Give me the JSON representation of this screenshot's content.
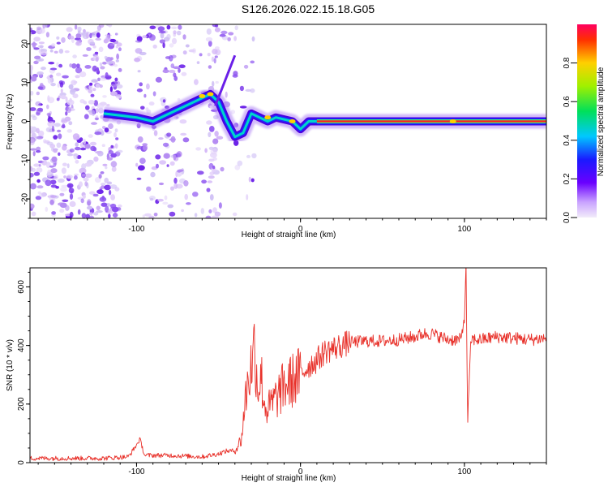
{
  "page_title": "S126.2026.022.15.18.G05",
  "chart_data": [
    {
      "type": "heatmap",
      "title": "S126.2026.022.15.18.G05",
      "xlabel": "Height of straight line (km)",
      "ylabel": "Frequency (Hz)",
      "xlim": [
        -165,
        150
      ],
      "ylim": [
        -25,
        25
      ],
      "xticks": [
        -100,
        0,
        100
      ],
      "yticks": [
        -20,
        -10,
        0,
        10,
        20
      ],
      "colorbar": {
        "label": "Normalized spectral amplitude",
        "range": [
          0,
          1
        ],
        "ticks": [
          "0.0",
          "0.2",
          "0.4",
          "0.6",
          "0.8"
        ],
        "colormap": "rainbow (white/violet low, red high)"
      },
      "ridge": {
        "description": "main frequency ridge vs height",
        "x": [
          -120,
          -110,
          -100,
          -90,
          -80,
          -70,
          -60,
          -55,
          -50,
          -45,
          -40,
          -35,
          -30,
          -25,
          -20,
          -15,
          -10,
          -5,
          0,
          5,
          10,
          20,
          40,
          60,
          80,
          100,
          120,
          140,
          150
        ],
        "y": [
          2,
          1.5,
          1,
          0,
          2,
          4,
          6,
          7,
          5,
          0,
          -4,
          -3,
          2,
          1,
          0,
          1,
          0.5,
          0,
          -2,
          0,
          0,
          0,
          0,
          0,
          0,
          0,
          0,
          0,
          0
        ]
      }
    },
    {
      "type": "line",
      "xlabel": "Height of straight line (km)",
      "ylabel": "SNR (10 * v/v)",
      "xlim": [
        -165,
        150
      ],
      "ylim": [
        0,
        665
      ],
      "xticks": [
        -100,
        0,
        100
      ],
      "yticks": [
        0,
        200,
        400,
        600
      ],
      "color": "#e8312a",
      "series": [
        {
          "name": "SNR",
          "x": [
            -165,
            -140,
            -120,
            -105,
            -100,
            -98,
            -95,
            -80,
            -60,
            -50,
            -45,
            -40,
            -36,
            -34,
            -32,
            -30,
            -28,
            -26,
            -24,
            -22,
            -20,
            -15,
            -10,
            -5,
            0,
            5,
            10,
            15,
            20,
            25,
            30,
            40,
            50,
            60,
            70,
            75,
            80,
            85,
            90,
            95,
            98,
            100,
            101,
            102,
            104,
            110,
            120,
            130,
            140,
            150
          ],
          "y": [
            15,
            15,
            15,
            20,
            60,
            80,
            25,
            25,
            20,
            30,
            40,
            40,
            80,
            200,
            280,
            330,
            400,
            250,
            300,
            200,
            180,
            220,
            260,
            280,
            300,
            330,
            350,
            380,
            390,
            400,
            410,
            415,
            415,
            420,
            430,
            440,
            440,
            430,
            420,
            420,
            420,
            500,
            660,
            140,
            420,
            420,
            430,
            425,
            420,
            425
          ]
        }
      ]
    }
  ]
}
